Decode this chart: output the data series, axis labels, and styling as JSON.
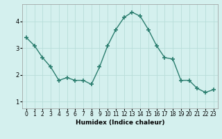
{
  "x": [
    0,
    1,
    2,
    3,
    4,
    5,
    6,
    7,
    8,
    9,
    10,
    11,
    12,
    13,
    14,
    15,
    16,
    17,
    18,
    19,
    20,
    21,
    22,
    23
  ],
  "y": [
    3.4,
    3.1,
    2.65,
    2.3,
    1.8,
    1.9,
    1.8,
    1.8,
    1.65,
    2.3,
    3.1,
    3.7,
    4.15,
    4.35,
    4.2,
    3.7,
    3.1,
    2.65,
    2.6,
    1.8,
    1.8,
    1.5,
    1.35,
    1.45
  ],
  "line_color": "#2a7d6e",
  "marker": "+",
  "marker_size": 4,
  "marker_lw": 1.2,
  "bg_color": "#d4f0ee",
  "grid_color": "#b8ddd9",
  "xlabel": "Humidex (Indice chaleur)",
  "ylim": [
    0.75,
    4.65
  ],
  "xlim": [
    -0.5,
    23.5
  ],
  "yticks": [
    1,
    2,
    3,
    4
  ],
  "xticks": [
    0,
    1,
    2,
    3,
    4,
    5,
    6,
    7,
    8,
    9,
    10,
    11,
    12,
    13,
    14,
    15,
    16,
    17,
    18,
    19,
    20,
    21,
    22,
    23
  ],
  "xticklabels": [
    "0",
    "1",
    "2",
    "3",
    "4",
    "5",
    "6",
    "7",
    "8",
    "9",
    "10",
    "11",
    "12",
    "13",
    "14",
    "15",
    "16",
    "17",
    "18",
    "19",
    "20",
    "21",
    "22",
    "23"
  ],
  "tick_fontsize": 5.5,
  "xlabel_fontsize": 6.5,
  "line_width": 1.0
}
